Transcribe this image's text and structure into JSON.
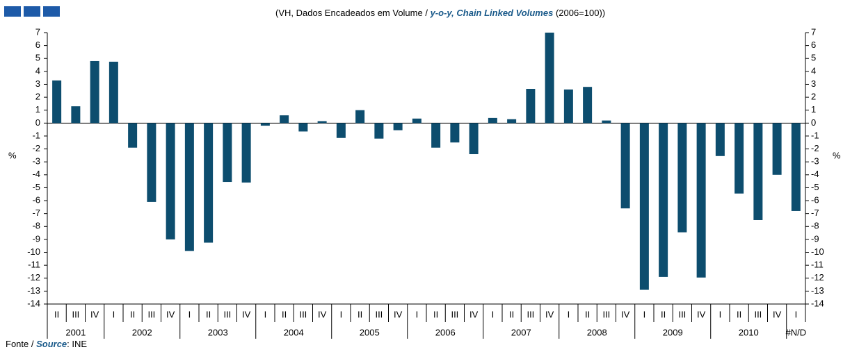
{
  "chart_data": {
    "type": "bar",
    "title_pt": "(VH, Dados Encadeados em Volume /",
    "title_en": "y-o-y, Chain Linked Volumes",
    "title_base": "(2006=100))",
    "y_label": "%",
    "source_pt": "Fonte /",
    "source_en": "Source",
    "source_value": ": INE",
    "categories": [
      "II",
      "III",
      "IV",
      "I",
      "II",
      "III",
      "IV",
      "I",
      "II",
      "III",
      "IV",
      "I",
      "II",
      "III",
      "IV",
      "I",
      "II",
      "III",
      "IV",
      "I",
      "II",
      "III",
      "IV",
      "I",
      "II",
      "III",
      "IV",
      "I",
      "II",
      "III",
      "IV",
      "I",
      "II",
      "III",
      "IV",
      "I",
      "II",
      "III",
      "IV",
      "I"
    ],
    "years": [
      "2001",
      "2002",
      "2003",
      "2004",
      "2005",
      "2006",
      "2007",
      "2008",
      "2009",
      "2010",
      "#N/D"
    ],
    "values": [
      3.3,
      1.3,
      4.8,
      4.75,
      -1.9,
      -6.1,
      -9.0,
      -9.9,
      -9.25,
      -4.55,
      -4.6,
      -0.2,
      0.6,
      -0.65,
      0.15,
      -1.15,
      1.0,
      -1.2,
      -0.55,
      0.35,
      -1.9,
      -1.5,
      -2.4,
      0.4,
      0.3,
      2.65,
      7.0,
      2.6,
      2.8,
      0.2,
      -6.6,
      -12.9,
      -11.9,
      -8.45,
      -11.95,
      -2.55,
      -5.45,
      -7.5,
      -4.0,
      -6.8
    ],
    "color": "#0d4d6e",
    "ylim": [
      -14,
      7
    ],
    "yticks": [
      -14,
      -13,
      -12,
      -11,
      -10,
      -9,
      -8,
      -7,
      -6,
      -5,
      -4,
      -3,
      -2,
      -1,
      0,
      1,
      2,
      3,
      4,
      5,
      6,
      7
    ]
  }
}
